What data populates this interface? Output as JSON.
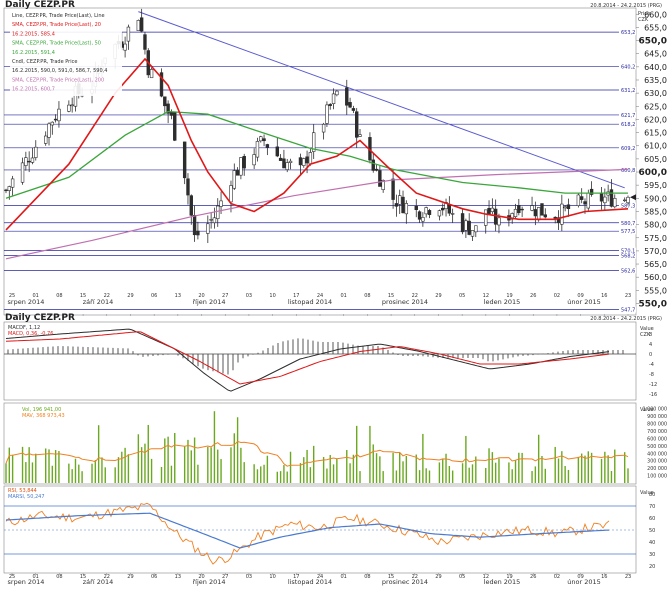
{
  "main_panel": {
    "title": "Daily CEZP.PR",
    "date_range": "20.8.2014 - 24.2.2015 (PRG)",
    "axis_title_1": "Price",
    "axis_title_2": "CZK",
    "legend": [
      {
        "text": "Line, CEZP.PR, Trade Price(Last), Line",
        "color": "#2d2d2d"
      },
      {
        "text": "SMA, CEZP.PR, Trade Price(Last), 20",
        "color": "#e01818"
      },
      {
        "text": "16.2.2015, 585,4",
        "color": "#e01818"
      },
      {
        "text": "SMA, CEZP.PR, Trade Price(Last), 50",
        "color": "#3aa63a"
      },
      {
        "text": "16.2.2015, 591,4",
        "color": "#3aa63a"
      },
      {
        "text": "Cndl, CEZP.PR, Trade Price",
        "color": "#2d2d2d"
      },
      {
        "text": "16.2.2015, 590,0, 591,0, 586,7, 590,4",
        "color": "#2d2d2d"
      },
      {
        "text": "SMA, CEZP.PR, Trade Price(Last), 200",
        "color": "#c070b0"
      },
      {
        "text": "16.2.2015, 600,7",
        "color": "#c070b0"
      }
    ],
    "price_ticks": [
      "660,0",
      "655,0",
      "650,0",
      "645,0",
      "640,0",
      "635,0",
      "630,0",
      "625,0",
      "620,0",
      "615,0",
      "610,0",
      "605,0",
      "600,0",
      "595,0",
      "590,0",
      "585,0",
      "580,0",
      "575,0",
      "570,0",
      "565,0",
      "560,0",
      "555,0",
      "550,0"
    ],
    "bold_ticks": [
      "650,0",
      "600,0",
      "550,0"
    ],
    "level_labels": [
      "653,2",
      "640,2",
      "631,2",
      "621,7",
      "618,2",
      "609,2",
      "600,8",
      "587,3",
      "580,7",
      "577,5",
      "570,1",
      "568,2",
      "562,6",
      "547,7"
    ],
    "date_ticks": [
      "25",
      "01",
      "08",
      "15",
      "22",
      "29",
      "06",
      "13",
      "20",
      "27",
      "03",
      "10",
      "17",
      "24",
      "01",
      "08",
      "15",
      "22",
      "29",
      "05",
      "12",
      "19",
      "26",
      "02",
      "09",
      "16",
      "23"
    ],
    "month_labels": [
      "srpen 2014",
      "září 2014",
      "říjen 2014",
      "listopad 2014",
      "prosinec 2014",
      "leden 2015",
      "únor 2015"
    ]
  },
  "macd_panel": {
    "legend": [
      {
        "text": "MACDF, 1,12",
        "color": "#2d2d2d"
      },
      {
        "text": "MACD, 0,36, -0,76",
        "color": "#e01818"
      }
    ],
    "axis_title_1": "Value",
    "axis_title_2": "CZK",
    "ticks": [
      "8",
      "4",
      "0",
      "-4",
      "-8",
      "-12",
      "-16"
    ]
  },
  "volume_panel": {
    "legend": [
      {
        "text": "Vol, 196 941,00",
        "color": "#6aa820"
      },
      {
        "text": "MAV, 368 973,43",
        "color": "#f08020"
      }
    ],
    "axis_title": "Value",
    "ticks": [
      "1 000 000",
      "900 000",
      "800 000",
      "700 000",
      "600 000",
      "500 000",
      "400 000",
      "300 000",
      "200 000",
      "100 000"
    ]
  },
  "rsi_panel": {
    "legend": [
      {
        "text": "RSI, 53,844",
        "color": "#2d2d2d"
      },
      {
        "text": "MARSI, 50,247",
        "color": "#2d2d2d"
      }
    ],
    "axis_title": "Value",
    "ticks": [
      "80",
      "70",
      "60",
      "50",
      "40",
      "30",
      "20"
    ]
  },
  "chart_data": {
    "type": "candlestick",
    "title": "Daily CEZP.PR",
    "ylabel": "Price CZK",
    "ylim": [
      546,
      662
    ],
    "colors": {
      "sma20": "#e01818",
      "sma50": "#3aa63a",
      "sma200": "#c070b0",
      "candle": "#2d2d2d",
      "level": "#2828a0",
      "trend": "#5a5ad0"
    },
    "levels": [
      653.2,
      640.2,
      631.2,
      621.7,
      618.2,
      609.2,
      600.8,
      587.3,
      580.7,
      577.5,
      570.1,
      568.2,
      562.6,
      547.7
    ],
    "current_price": 590.4,
    "trendline": {
      "from": [
        "2014-09-29",
        661
      ],
      "to": [
        "2015-02-23",
        594
      ]
    },
    "price_anchors": [
      [
        "2014-08-20",
        593
      ],
      [
        "2014-08-28",
        608
      ],
      [
        "2014-09-03",
        620
      ],
      [
        "2014-09-08",
        628
      ],
      [
        "2014-09-15",
        633
      ],
      [
        "2014-09-19",
        645
      ],
      [
        "2014-09-24",
        650
      ],
      [
        "2014-09-29",
        660
      ],
      [
        "2014-10-02",
        640
      ],
      [
        "2014-10-06",
        628
      ],
      [
        "2014-10-09",
        620
      ],
      [
        "2014-10-13",
        600
      ],
      [
        "2014-10-16",
        575
      ],
      [
        "2014-10-22",
        583
      ],
      [
        "2014-10-27",
        598
      ],
      [
        "2014-11-03",
        608
      ],
      [
        "2014-11-06",
        612
      ],
      [
        "2014-11-11",
        605
      ],
      [
        "2014-11-17",
        600
      ],
      [
        "2014-11-21",
        612
      ],
      [
        "2014-11-28",
        630
      ],
      [
        "2014-12-02",
        625
      ],
      [
        "2014-12-05",
        612
      ],
      [
        "2014-12-10",
        600
      ],
      [
        "2014-12-15",
        590
      ],
      [
        "2014-12-22",
        585
      ],
      [
        "2014-12-29",
        588
      ],
      [
        "2015-01-05",
        580
      ],
      [
        "2015-01-09",
        578
      ],
      [
        "2015-01-12",
        586
      ],
      [
        "2015-01-16",
        580
      ],
      [
        "2015-01-22",
        588
      ],
      [
        "2015-01-29",
        585
      ],
      [
        "2015-02-03",
        584
      ],
      [
        "2015-02-09",
        588
      ],
      [
        "2015-02-16",
        590
      ],
      [
        "2015-02-24",
        590.4
      ]
    ],
    "sma20": [
      [
        "2014-08-20",
        578
      ],
      [
        "2014-09-08",
        603
      ],
      [
        "2014-09-22",
        630
      ],
      [
        "2014-10-01",
        643
      ],
      [
        "2014-10-08",
        633
      ],
      [
        "2014-10-15",
        612
      ],
      [
        "2014-10-20",
        600
      ],
      [
        "2014-10-27",
        588
      ],
      [
        "2014-11-03",
        585
      ],
      [
        "2014-11-12",
        592
      ],
      [
        "2014-11-20",
        603
      ],
      [
        "2014-11-28",
        606
      ],
      [
        "2014-12-05",
        612
      ],
      [
        "2014-12-15",
        600
      ],
      [
        "2014-12-22",
        592
      ],
      [
        "2015-01-05",
        586
      ],
      [
        "2015-01-12",
        584
      ],
      [
        "2015-01-22",
        582
      ],
      [
        "2015-02-02",
        582
      ],
      [
        "2015-02-11",
        585
      ],
      [
        "2015-02-24",
        586
      ]
    ],
    "sma50": [
      [
        "2014-08-20",
        590
      ],
      [
        "2014-09-08",
        598
      ],
      [
        "2014-09-25",
        614
      ],
      [
        "2014-10-08",
        623
      ],
      [
        "2014-10-20",
        622
      ],
      [
        "2014-11-03",
        616
      ],
      [
        "2014-11-20",
        609
      ],
      [
        "2014-12-02",
        606
      ],
      [
        "2014-12-15",
        601
      ],
      [
        "2015-01-05",
        596
      ],
      [
        "2015-01-22",
        594
      ],
      [
        "2015-02-05",
        592
      ],
      [
        "2015-02-24",
        592
      ]
    ],
    "sma200": [
      [
        "2014-08-20",
        567
      ],
      [
        "2014-09-15",
        574
      ],
      [
        "2014-10-15",
        583
      ],
      [
        "2014-11-15",
        591
      ],
      [
        "2014-12-15",
        597
      ],
      [
        "2015-01-15",
        599
      ],
      [
        "2015-02-24",
        601
      ]
    ],
    "macd": {
      "value": 1.12,
      "signal": 0.36,
      "histogram": -0.76,
      "ylim": [
        -18,
        12
      ]
    },
    "volume": {
      "last": 196941.0,
      "mav": 368973.43,
      "ylim": [
        0,
        1050000
      ]
    },
    "rsi": {
      "value": 53.844,
      "marsi": 50.247,
      "ylim": [
        15,
        85
      ],
      "levels": [
        70,
        30
      ]
    }
  }
}
